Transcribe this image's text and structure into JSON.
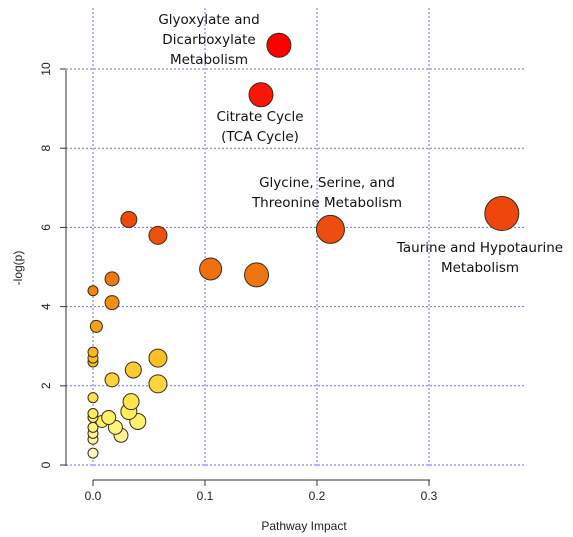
{
  "chart_data": {
    "type": "scatter",
    "xlabel": "Pathway Impact",
    "ylabel": "-log(p)",
    "xlim": [
      -0.02,
      0.37
    ],
    "ylim": [
      0,
      11.2
    ],
    "x_ticks": [
      "0.0",
      "0.1",
      "0.2",
      "0.3"
    ],
    "y_ticks": [
      "0",
      "2",
      "4",
      "6",
      "8",
      "10"
    ],
    "grid": true,
    "colors": {
      "grid": "#6e6ee6",
      "high": "#ff0000",
      "low": "#ffffe0",
      "stroke": "#3a2a1a"
    },
    "points": [
      {
        "x": 0.166,
        "y": 10.6,
        "size": 12
      },
      {
        "x": 0.15,
        "y": 9.35,
        "size": 12
      },
      {
        "x": 0.212,
        "y": 5.95,
        "size": 14
      },
      {
        "x": 0.365,
        "y": 6.35,
        "size": 17
      },
      {
        "x": 0.032,
        "y": 6.2,
        "size": 8
      },
      {
        "x": 0.058,
        "y": 5.8,
        "size": 9
      },
      {
        "x": 0.105,
        "y": 4.95,
        "size": 11
      },
      {
        "x": 0.146,
        "y": 4.8,
        "size": 12
      },
      {
        "x": 0.017,
        "y": 4.7,
        "size": 7
      },
      {
        "x": 0.0,
        "y": 4.4,
        "size": 5
      },
      {
        "x": 0.017,
        "y": 4.1,
        "size": 7
      },
      {
        "x": 0.003,
        "y": 3.5,
        "size": 6
      },
      {
        "x": 0.0,
        "y": 2.85,
        "size": 5
      },
      {
        "x": 0.0,
        "y": 2.7,
        "size": 5
      },
      {
        "x": 0.0,
        "y": 2.6,
        "size": 5
      },
      {
        "x": 0.058,
        "y": 2.7,
        "size": 9
      },
      {
        "x": 0.036,
        "y": 2.4,
        "size": 8
      },
      {
        "x": 0.017,
        "y": 2.15,
        "size": 7
      },
      {
        "x": 0.058,
        "y": 2.05,
        "size": 9
      },
      {
        "x": 0.0,
        "y": 1.7,
        "size": 5
      },
      {
        "x": 0.034,
        "y": 1.6,
        "size": 8
      },
      {
        "x": 0.032,
        "y": 1.35,
        "size": 8
      },
      {
        "x": 0.0,
        "y": 1.3,
        "size": 5
      },
      {
        "x": 0.0,
        "y": 1.2,
        "size": 5
      },
      {
        "x": 0.014,
        "y": 1.2,
        "size": 7
      },
      {
        "x": 0.008,
        "y": 1.1,
        "size": 6
      },
      {
        "x": 0.04,
        "y": 1.1,
        "size": 8
      },
      {
        "x": 0.02,
        "y": 0.95,
        "size": 7
      },
      {
        "x": 0.0,
        "y": 0.95,
        "size": 5
      },
      {
        "x": 0.0,
        "y": 0.8,
        "size": 5
      },
      {
        "x": 0.025,
        "y": 0.75,
        "size": 7
      },
      {
        "x": 0.0,
        "y": 0.65,
        "size": 5
      },
      {
        "x": 0.0,
        "y": 0.3,
        "size": 5
      }
    ],
    "annotations": [
      {
        "lines": [
          "Glyoxylate and",
          "Dicarboxylate",
          "Metabolism"
        ]
      },
      {
        "lines": [
          "Citrate Cycle",
          "(TCA Cycle)"
        ]
      },
      {
        "lines": [
          "Glycine, Serine, and",
          "Threonine Metabolism"
        ]
      },
      {
        "lines": [
          "Taurine and Hypotaurine",
          "Metabolism"
        ]
      }
    ]
  }
}
